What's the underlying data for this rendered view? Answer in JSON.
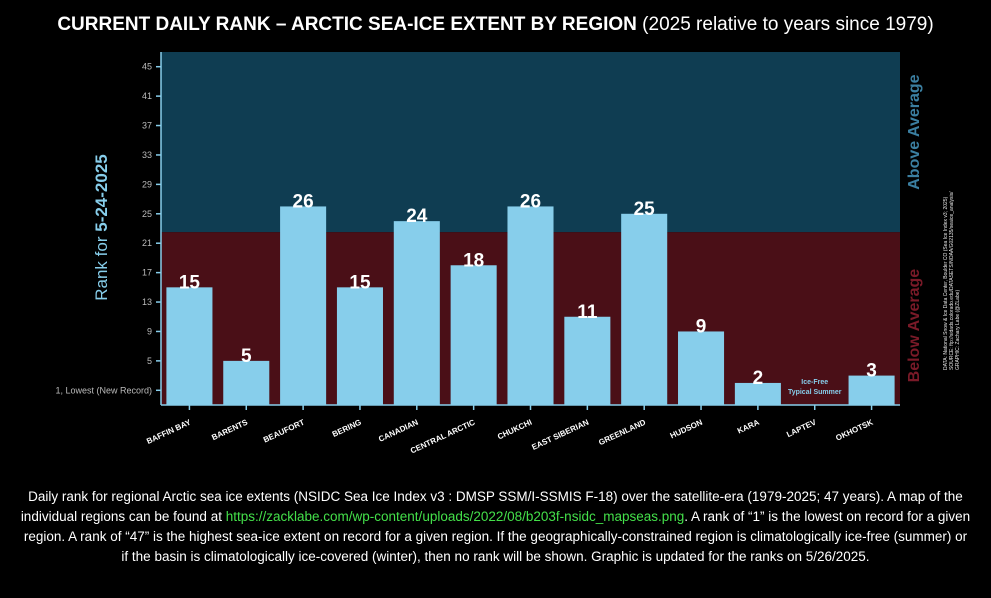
{
  "title": {
    "main": "CURRENT DAILY RANK – ARCTIC SEA-ICE EXTENT BY REGION",
    "sub": "(2025 relative to years since 1979)"
  },
  "chart_data": {
    "type": "bar",
    "categories": [
      "BAFFIN BAY",
      "BARENTS",
      "BEAUFORT",
      "BERING",
      "CANADIAN",
      "CENTRAL ARCTIC",
      "CHUKCHI",
      "EAST SIBERIAN",
      "GREENLAND",
      "HUDSON",
      "KARA",
      "LAPTEV",
      "OKHOTSK"
    ],
    "values": [
      15,
      5,
      26,
      15,
      24,
      18,
      26,
      11,
      25,
      9,
      2,
      null,
      3
    ],
    "value_labels": [
      "15",
      "5",
      "26",
      "15",
      "24",
      "18",
      "26",
      "11",
      "25",
      "9",
      "2",
      "",
      "3"
    ],
    "ylim": [
      -1,
      47
    ],
    "yticks": [
      45,
      41,
      37,
      33,
      29,
      25,
      21,
      17,
      13,
      9,
      5,
      1
    ],
    "ytick_labels": [
      "45",
      "41",
      "37",
      "33",
      "29",
      "25",
      "21",
      "17",
      "13",
      "9",
      "5",
      "1, Lowest (New Record)"
    ],
    "ylabel_prefix": "Rank for ",
    "ylabel_date": "5-24-2025",
    "average_threshold": 22.5,
    "regions": {
      "above": "Above Average",
      "below": "Below Average"
    },
    "no_data_note": [
      "Ice-Free",
      "Typical Summer"
    ],
    "grid": false,
    "colors": {
      "bar": "#87ceeb",
      "above_bg": "#0f3d52",
      "below_bg": "#4a0f17",
      "axis": "#87ceeb",
      "above_text": "#3b7fa1",
      "below_text": "#7a1a28"
    }
  },
  "credit": {
    "line1": "DATA: National Snow & Ice Data Center, Boulder CO (Sea Ice Index v3; 2025)",
    "line2": "SOURCE: ftp://sidads.colorado.edu/DATASETS/NOAA/G02135/seaice_analysis/",
    "line3": "GRAPHIC: Zachary Labe (@ZLabe)"
  },
  "caption": {
    "part1": "Daily rank for regional Arctic sea ice extents (NSIDC Sea Ice Index v3 : DMSP SSM/I-SSMIS F-18) over the satellite-era (1979-2025; 47 years). A map of the individual regions can be found at ",
    "link": "https://zacklabe.com/wp-content/uploads/2022/08/b203f-nsidc_mapseas.png",
    "part2": ". A rank of “1” is the lowest on record for a given region. A rank of “47” is the highest sea-ice extent on record for a given region. If the geographically-constrained region is climatologically ice-free (summer) or if the basin is climatologically ice-covered (winter), then no rank will be shown. Graphic is updated for the ranks on 5/26/2025."
  }
}
